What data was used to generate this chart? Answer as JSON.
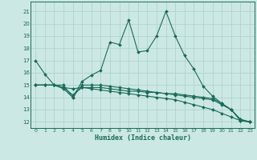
{
  "xlabel": "Humidex (Indice chaleur)",
  "xlim": [
    -0.5,
    23.5
  ],
  "ylim": [
    11.5,
    21.8
  ],
  "yticks": [
    12,
    13,
    14,
    15,
    16,
    17,
    18,
    19,
    20,
    21
  ],
  "xticks": [
    0,
    1,
    2,
    3,
    4,
    5,
    6,
    7,
    8,
    9,
    10,
    11,
    12,
    13,
    14,
    15,
    16,
    17,
    18,
    19,
    20,
    21,
    22,
    23
  ],
  "bg_color": "#cce8e4",
  "grid_color": "#b0d4cc",
  "line_color": "#1a6b5a",
  "lines": [
    {
      "x": [
        0,
        1,
        2,
        3,
        4,
        5,
        6,
        7,
        8,
        9,
        10,
        11,
        12,
        13,
        14,
        15,
        16,
        17,
        18,
        19,
        20,
        21,
        22,
        23
      ],
      "y": [
        17.0,
        15.9,
        15.0,
        14.7,
        14.0,
        15.3,
        15.8,
        16.2,
        18.5,
        18.3,
        20.3,
        17.7,
        17.8,
        19.0,
        21.0,
        19.0,
        17.4,
        16.3,
        14.9,
        14.1,
        13.5,
        13.0,
        12.1,
        12.0
      ]
    },
    {
      "x": [
        0,
        1,
        2,
        3,
        4,
        5,
        6,
        7,
        8,
        9,
        10,
        11,
        12,
        13,
        14,
        15,
        16,
        17,
        18,
        19,
        20,
        21,
        22,
        23
      ],
      "y": [
        15.0,
        15.0,
        15.0,
        14.8,
        14.7,
        14.8,
        14.8,
        14.8,
        14.7,
        14.6,
        14.5,
        14.5,
        14.4,
        14.4,
        14.3,
        14.3,
        14.2,
        14.1,
        14.0,
        13.9,
        13.5,
        13.0,
        12.2,
        12.0
      ]
    },
    {
      "x": [
        0,
        1,
        2,
        3,
        4,
        5,
        6,
        7,
        8,
        9,
        10,
        11,
        12,
        13,
        14,
        15,
        16,
        17,
        18,
        19,
        20,
        21,
        22,
        23
      ],
      "y": [
        15.0,
        15.0,
        15.0,
        15.0,
        14.0,
        15.0,
        15.0,
        15.0,
        14.9,
        14.8,
        14.7,
        14.6,
        14.5,
        14.4,
        14.3,
        14.2,
        14.1,
        14.0,
        13.9,
        13.8,
        13.4,
        13.0,
        12.2,
        12.0
      ]
    },
    {
      "x": [
        0,
        1,
        2,
        3,
        4,
        5,
        6,
        7,
        8,
        9,
        10,
        11,
        12,
        13,
        14,
        15,
        16,
        17,
        18,
        19,
        20,
        21,
        22,
        23
      ],
      "y": [
        15.0,
        15.0,
        15.0,
        14.8,
        14.2,
        14.8,
        14.7,
        14.6,
        14.5,
        14.4,
        14.3,
        14.2,
        14.1,
        14.0,
        13.9,
        13.8,
        13.6,
        13.4,
        13.2,
        13.0,
        12.7,
        12.4,
        12.1,
        12.0
      ]
    }
  ]
}
